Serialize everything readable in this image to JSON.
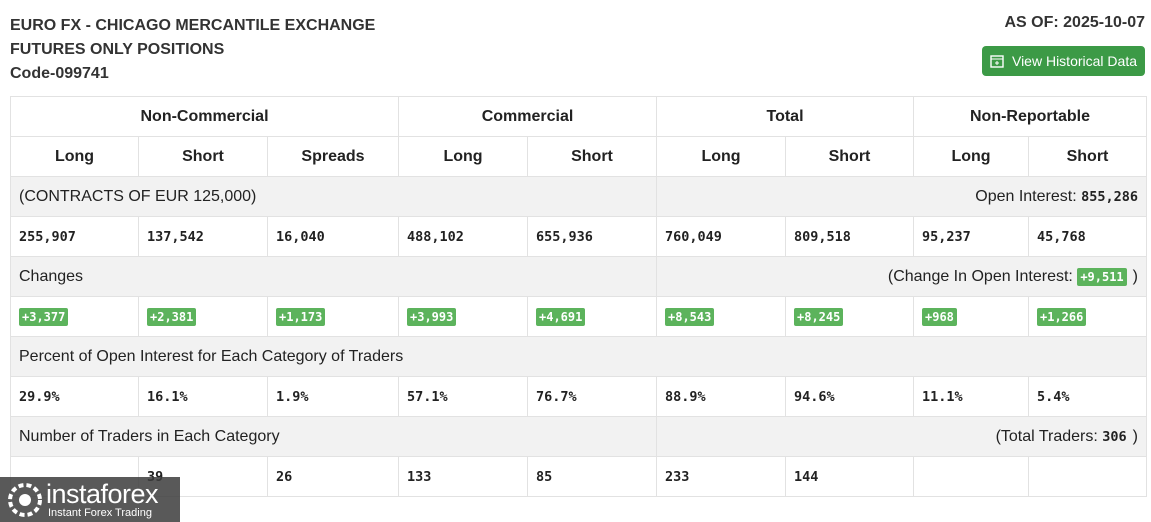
{
  "header": {
    "title_line1": "EURO FX - CHICAGO MERCANTILE EXCHANGE",
    "title_line2": "FUTURES ONLY POSITIONS",
    "code": "Code-099741",
    "as_of": "AS OF: 2025-10-07",
    "button": "View Historical Data"
  },
  "table": {
    "groups": [
      "Non-Commercial",
      "Commercial",
      "Total",
      "Non-Reportable"
    ],
    "subheaders": [
      "Long",
      "Short",
      "Spreads",
      "Long",
      "Short",
      "Long",
      "Short",
      "Long",
      "Short"
    ],
    "contracts": {
      "label": "(CONTRACTS OF EUR 125,000)",
      "right_label": "Open Interest:",
      "right_value": "855,286",
      "values": [
        "255,907",
        "137,542",
        "16,040",
        "488,102",
        "655,936",
        "760,049",
        "809,518",
        "95,237",
        "45,768"
      ]
    },
    "changes": {
      "label": "Changes",
      "right_label": "(Change In Open Interest:",
      "right_value": "+9,511",
      "right_close": ")",
      "values": [
        "+3,377",
        "+2,381",
        "+1,173",
        "+3,993",
        "+4,691",
        "+8,543",
        "+8,245",
        "+968",
        "+1,266"
      ]
    },
    "percent": {
      "label": "Percent of Open Interest for Each Category of Traders",
      "values": [
        "29.9%",
        "16.1%",
        "1.9%",
        "57.1%",
        "76.7%",
        "88.9%",
        "94.6%",
        "11.1%",
        "5.4%"
      ]
    },
    "traders": {
      "label": "Number of Traders in Each Category",
      "right_label": "(Total Traders:",
      "right_value": "306",
      "right_close": ")",
      "values": [
        null,
        "39",
        "26",
        "133",
        "85",
        "233",
        "144"
      ]
    }
  },
  "watermark": {
    "name": "instaforex",
    "tagline": "Instant Forex Trading"
  }
}
